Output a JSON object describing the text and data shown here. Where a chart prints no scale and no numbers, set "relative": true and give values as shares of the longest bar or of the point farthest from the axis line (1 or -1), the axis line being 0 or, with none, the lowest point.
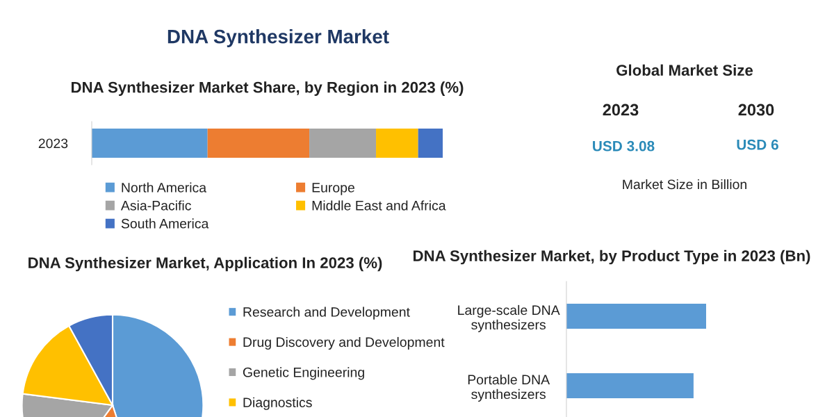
{
  "chart_data": [
    {
      "type": "other",
      "title": "DNA Synthesizer Market"
    },
    {
      "type": "bar",
      "orientation": "horizontal",
      "stacked": true,
      "relative": true,
      "title": "DNA Synthesizer Market Share, by Region in 2023 (%)",
      "categories": [
        "2023"
      ],
      "legend": "bottom",
      "series": [
        {
          "name": "North America",
          "color": "#5b9bd5",
          "values": [
            0.33
          ]
        },
        {
          "name": "Europe",
          "color": "#ed7d31",
          "values": [
            0.29
          ]
        },
        {
          "name": "Asia-Pacific",
          "color": "#a5a5a5",
          "values": [
            0.19
          ]
        },
        {
          "name": "Middle East and Africa",
          "color": "#ffc000",
          "values": [
            0.12
          ]
        },
        {
          "name": "South America",
          "color": "#4472c4",
          "values": [
            0.07
          ]
        }
      ]
    },
    {
      "type": "other",
      "title": "Global Market Size",
      "annotations": [
        "2023",
        "2030",
        "USD 3.08",
        "USD 6",
        "Market Size in Billion"
      ]
    },
    {
      "type": "pie",
      "title": "DNA Synthesizer Market, Application In 2023 (%)",
      "legend": "right",
      "categories": [
        "Research and Development",
        "Drug Discovery and Development",
        "Genetic Engineering",
        "Diagnostics",
        null
      ],
      "values": [
        45,
        15,
        17,
        15,
        8
      ],
      "colors": [
        "#5b9bd5",
        "#ed7d31",
        "#a5a5a5",
        "#ffc000",
        "#4472c4"
      ]
    },
    {
      "type": "bar",
      "orientation": "horizontal",
      "relative": true,
      "title": "DNA Synthesizer Market, by Product Type in 2023 (Bn)",
      "categories": [
        "Large-scale DNA\nsynthesizers",
        "Portable DNA\nsynthesizers"
      ],
      "values": [
        1,
        0.91
      ],
      "color": "#5b9bd5"
    }
  ]
}
